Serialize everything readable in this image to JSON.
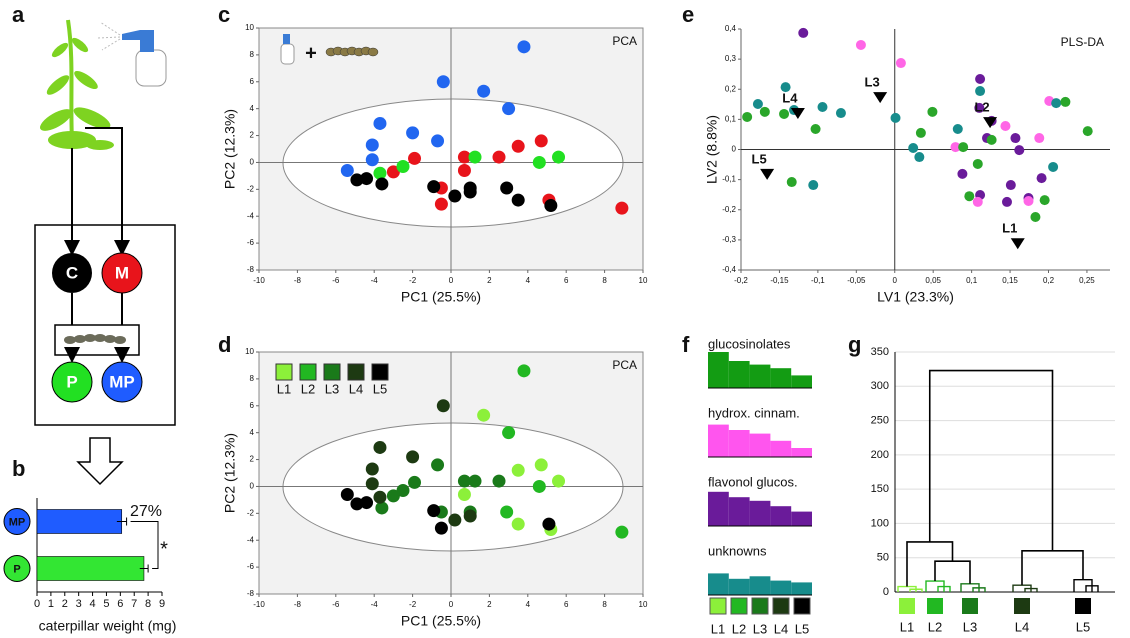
{
  "panel_labels": [
    "a",
    "b",
    "c",
    "d",
    "e",
    "f",
    "g"
  ],
  "diagram": {
    "nodes": [
      "C",
      "M",
      "P",
      "MP"
    ]
  },
  "chart_data": [
    {
      "type": "bar",
      "orientation": "horizontal",
      "categories": [
        "MP",
        "P"
      ],
      "values": [
        6.1,
        7.7
      ],
      "errors": [
        0.35,
        0.3
      ],
      "colors": [
        "#1f5cff",
        "#33e633"
      ],
      "xlim": [
        0,
        9
      ],
      "xticks": [
        0,
        1,
        2,
        3,
        4,
        5,
        6,
        7,
        8,
        9
      ],
      "xlabel": "caterpillar weight (mg)",
      "annotations": [
        "27%",
        "*"
      ]
    },
    {
      "type": "scatter",
      "title": "PCA",
      "icon_text": "+",
      "confidence_ellipse": true,
      "xlabel": "PC1 (25.5%)",
      "ylabel": "PC2 (12.3%)",
      "xlim": [
        -10,
        10
      ],
      "ylim": [
        -8,
        10
      ],
      "xticks": [
        -10,
        -8,
        -6,
        -4,
        -2,
        0,
        2,
        4,
        6,
        8,
        10
      ],
      "yticks": [
        -8,
        -6,
        -4,
        -2,
        0,
        2,
        4,
        6,
        8,
        10
      ],
      "series": [
        {
          "color": "#2166f0",
          "x": [
            3.8,
            -0.4,
            1.7,
            3.0,
            -3.7,
            -2.0,
            -4.1,
            -0.7,
            -4.1,
            -5.4
          ],
          "y": [
            8.6,
            6.0,
            5.3,
            4.0,
            2.9,
            2.2,
            1.3,
            1.6,
            0.2,
            -0.6
          ]
        },
        {
          "color": "#e8141b",
          "x": [
            4.7,
            3.5,
            2.5,
            0.7,
            -1.9,
            -3.0,
            0.7,
            -0.5,
            -0.5,
            5.1,
            8.9
          ],
          "y": [
            1.6,
            1.2,
            0.4,
            0.4,
            0.3,
            -0.7,
            -0.6,
            -1.9,
            -3.1,
            -2.8,
            -3.4
          ]
        },
        {
          "color": "#22e022",
          "x": [
            5.6,
            4.6,
            1.25,
            -2.5,
            -3.7
          ],
          "y": [
            0.4,
            0.0,
            0.4,
            -0.3,
            -0.8
          ]
        },
        {
          "color": "#000000",
          "x": [
            -4.9,
            -4.4,
            -3.6,
            -0.9,
            0.2,
            1.0,
            1.0,
            2.9,
            3.5,
            5.2
          ],
          "y": [
            -1.3,
            -1.2,
            -1.6,
            -1.8,
            -2.5,
            -1.9,
            -2.2,
            -1.9,
            -2.8,
            -3.2
          ]
        }
      ]
    },
    {
      "type": "scatter",
      "title": "PCA",
      "confidence_ellipse": true,
      "xlabel": "PC1 (25.5%)",
      "ylabel": "PC2 (12.3%)",
      "xlim": [
        -10,
        10
      ],
      "ylim": [
        -8,
        10
      ],
      "xticks": [
        -10,
        -8,
        -6,
        -4,
        -2,
        0,
        2,
        4,
        6,
        8,
        10
      ],
      "yticks": [
        -8,
        -6,
        -4,
        -2,
        0,
        2,
        4,
        6,
        8,
        10
      ],
      "series": [
        {
          "name": "L1",
          "color": "#8cf03a",
          "x": [
            1.7,
            4.7,
            3.5,
            0.7,
            5.6,
            3.5,
            5.2
          ],
          "y": [
            5.3,
            1.6,
            1.2,
            -0.6,
            0.4,
            -2.8,
            -3.2
          ]
        },
        {
          "name": "L2",
          "color": "#22b822",
          "x": [
            3.8,
            3.0,
            8.9,
            4.6,
            2.9
          ],
          "y": [
            8.6,
            4.0,
            -3.4,
            0.0,
            -1.9
          ]
        },
        {
          "name": "L3",
          "color": "#1a7a1a",
          "x": [
            -0.7,
            2.5,
            0.7,
            -1.9,
            -3.0,
            -0.5,
            1.25,
            -2.5,
            -3.6,
            1.0
          ],
          "y": [
            1.6,
            0.4,
            0.4,
            0.3,
            -0.7,
            -1.9,
            0.4,
            -0.3,
            -1.6,
            -1.9
          ]
        },
        {
          "name": "L4",
          "color": "#1d3a12",
          "x": [
            -0.4,
            -3.7,
            -2.0,
            -4.1,
            -4.1,
            -3.7,
            0.2,
            1.0
          ],
          "y": [
            6.0,
            2.9,
            2.2,
            1.3,
            0.2,
            -0.8,
            -2.5,
            -2.2
          ]
        },
        {
          "name": "L5",
          "color": "#000000",
          "x": [
            -5.4,
            -0.5,
            5.1,
            -4.9,
            -4.4,
            -0.9
          ],
          "y": [
            -0.6,
            -3.1,
            -2.8,
            -1.3,
            -1.2,
            -1.8
          ]
        }
      ]
    },
    {
      "type": "scatter",
      "title": "PLS-DA",
      "xlabel": "LV1 (23.3%)",
      "ylabel": "LV2 (8.8%)",
      "axes_cross_zero": true,
      "xlim": [
        -0.2,
        0.28
      ],
      "ylim": [
        -0.4,
        0.4
      ],
      "xticks": [
        {
          "value": -0.2,
          "label": "-0,2"
        },
        {
          "value": -0.15,
          "label": "-0,15"
        },
        {
          "value": -0.1,
          "label": "-0,1"
        },
        {
          "value": -0.05,
          "label": "-0,05"
        },
        0,
        {
          "value": 0.05,
          "label": "0,05"
        },
        {
          "value": 0.1,
          "label": "0,1"
        },
        {
          "value": 0.15,
          "label": "0,15"
        },
        {
          "value": 0.2,
          "label": "0,2"
        },
        {
          "value": 0.25,
          "label": "0,25"
        }
      ],
      "yticks": [
        {
          "value": -0.4,
          "label": "-0,4"
        },
        {
          "value": -0.3,
          "label": "-0,3"
        },
        {
          "value": -0.2,
          "label": "-0,2"
        },
        {
          "value": -0.1,
          "label": "-0,1"
        },
        0,
        {
          "value": 0.1,
          "label": "0,1"
        },
        {
          "value": 0.2,
          "label": "0,2"
        },
        {
          "value": 0.3,
          "label": "0,3"
        },
        {
          "value": 0.4,
          "label": "0,4"
        }
      ],
      "series": [
        {
          "color": "#6a1b9a",
          "x": [
            -0.119,
            0.111,
            0.11,
            0.126,
            0.12,
            0.157,
            0.162,
            0.088,
            0.111,
            0.151,
            0.191,
            0.174,
            0.146
          ],
          "y": [
            0.387,
            0.234,
            0.138,
            0.095,
            0.038,
            0.038,
            -0.002,
            -0.081,
            -0.151,
            -0.118,
            -0.095,
            -0.161,
            -0.174
          ]
        },
        {
          "color": "#ff66e6",
          "x": [
            -0.044,
            0.008,
            0.079,
            0.144,
            0.201,
            0.188,
            0.108,
            0.174
          ],
          "y": [
            0.347,
            0.287,
            0.008,
            0.078,
            0.161,
            0.038,
            -0.174,
            -0.171
          ]
        },
        {
          "color": "#178c8c",
          "x": [
            -0.178,
            -0.142,
            -0.131,
            -0.094,
            -0.07,
            -0.106,
            0.024,
            0.032,
            0.082,
            0.111,
            0.21,
            0.206,
            0.001
          ],
          "y": [
            0.151,
            0.207,
            0.131,
            0.141,
            0.121,
            -0.118,
            0.005,
            -0.025,
            0.068,
            0.194,
            0.154,
            -0.058,
            0.105
          ]
        },
        {
          "color": "#2aa62a",
          "x": [
            -0.192,
            -0.169,
            -0.144,
            -0.103,
            -0.134,
            0.049,
            0.034,
            0.089,
            0.108,
            0.126,
            0.097,
            0.183,
            0.195,
            0.222,
            0.251
          ],
          "y": [
            0.108,
            0.125,
            0.118,
            0.068,
            -0.108,
            0.125,
            0.055,
            0.008,
            -0.048,
            0.032,
            -0.155,
            -0.224,
            -0.168,
            0.158,
            0.061
          ]
        }
      ],
      "annotations": [
        {
          "text": "L1",
          "x": 0.16,
          "y": -0.311
        },
        {
          "text": "L2",
          "x": 0.124,
          "y": 0.091
        },
        {
          "text": "L3",
          "x": -0.019,
          "y": 0.174
        },
        {
          "text": "L4",
          "x": -0.126,
          "y": 0.121
        },
        {
          "text": "L5",
          "x": -0.166,
          "y": -0.081
        }
      ]
    },
    {
      "type": "bar",
      "categories": [
        "L1",
        "L2",
        "L3",
        "L4",
        "L5"
      ],
      "category_colors": [
        "#8cf03a",
        "#22b822",
        "#1a7a1a",
        "#1d3a12",
        "#000000"
      ],
      "series": [
        {
          "name": "glucosinolates",
          "color": "#139c13",
          "values": [
            100,
            75,
            65,
            55,
            35
          ]
        },
        {
          "name": "hydrox. cinnam.",
          "color": "#ff55ee",
          "values": [
            90,
            75,
            65,
            45,
            25
          ]
        },
        {
          "name": "flavonol glucos.",
          "color": "#6a1b9a",
          "values": [
            95,
            80,
            70,
            55,
            40
          ]
        },
        {
          "name": "unknowns",
          "color": "#178c8c",
          "values": [
            60,
            45,
            52,
            40,
            35
          ]
        }
      ]
    },
    {
      "type": "dendrogram",
      "ylim": [
        0,
        350
      ],
      "yticks": [
        0,
        50,
        100,
        150,
        200,
        250,
        300,
        350
      ],
      "grid": true,
      "leaves": [
        "L1",
        "L2",
        "L3",
        "L4",
        "L5"
      ],
      "leaf_colors": [
        "#8cf03a",
        "#22b822",
        "#1a7a1a",
        "#1d3a12",
        "#000000"
      ],
      "leaf_heights": [
        8,
        16,
        12,
        10,
        18
      ],
      "merge_heights": [
        45,
        73,
        60,
        323
      ]
    }
  ]
}
